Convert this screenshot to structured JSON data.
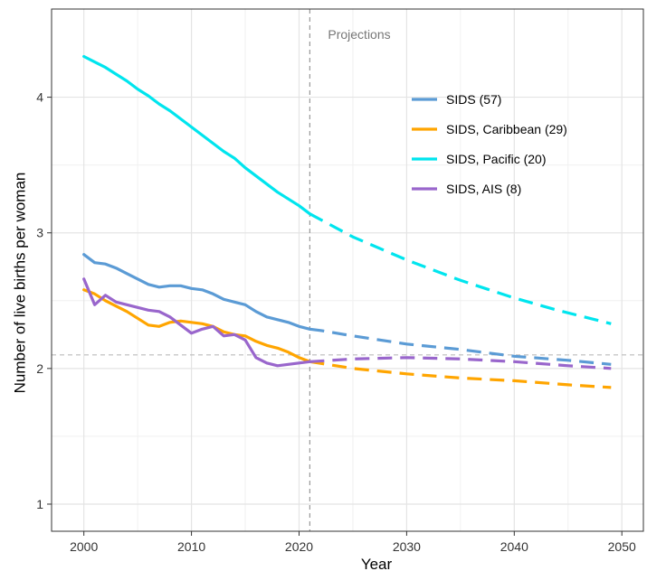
{
  "chart_data": {
    "type": "line",
    "title": "",
    "xlabel": "Year",
    "ylabel": "Number of live births per woman",
    "xlim": [
      1997,
      2052
    ],
    "ylim": [
      0.8,
      4.65
    ],
    "x_ticks": [
      2000,
      2010,
      2020,
      2030,
      2040,
      2050
    ],
    "y_ticks": [
      1,
      2,
      3,
      4
    ],
    "x_tick_labels": [
      "2000",
      "2010",
      "2020",
      "2030",
      "2040",
      "2050"
    ],
    "y_tick_labels": [
      "1",
      "2",
      "3",
      "4"
    ],
    "grid": true,
    "legend_position": "top-right",
    "projection_start": 2021,
    "projection_label": "Projections",
    "reference_line": 2.1,
    "series": [
      {
        "name": "SIDS (57)",
        "color": "#5b9bd5",
        "x": [
          2000,
          2001,
          2002,
          2003,
          2004,
          2005,
          2006,
          2007,
          2008,
          2009,
          2010,
          2011,
          2012,
          2013,
          2014,
          2015,
          2016,
          2017,
          2018,
          2019,
          2020,
          2021,
          2022,
          2025,
          2030,
          2035,
          2040,
          2045,
          2049
        ],
        "y": [
          2.84,
          2.78,
          2.77,
          2.74,
          2.7,
          2.66,
          2.62,
          2.6,
          2.61,
          2.61,
          2.59,
          2.58,
          2.55,
          2.51,
          2.49,
          2.47,
          2.42,
          2.38,
          2.36,
          2.34,
          2.31,
          2.29,
          2.28,
          2.24,
          2.18,
          2.14,
          2.09,
          2.06,
          2.03
        ]
      },
      {
        "name": "SIDS, Caribbean (29)",
        "color": "#ffa500",
        "x": [
          2000,
          2001,
          2002,
          2003,
          2004,
          2005,
          2006,
          2007,
          2008,
          2009,
          2010,
          2011,
          2012,
          2013,
          2014,
          2015,
          2016,
          2017,
          2018,
          2019,
          2020,
          2021,
          2025,
          2030,
          2035,
          2040,
          2045,
          2049
        ],
        "y": [
          2.58,
          2.55,
          2.5,
          2.46,
          2.42,
          2.37,
          2.32,
          2.31,
          2.34,
          2.35,
          2.34,
          2.33,
          2.31,
          2.27,
          2.25,
          2.24,
          2.2,
          2.17,
          2.15,
          2.12,
          2.08,
          2.05,
          2.0,
          1.96,
          1.93,
          1.91,
          1.88,
          1.86
        ]
      },
      {
        "name": "SIDS, Pacific (20)",
        "color": "#00e5ee",
        "x": [
          2000,
          2001,
          2002,
          2003,
          2004,
          2005,
          2006,
          2007,
          2008,
          2009,
          2010,
          2011,
          2012,
          2013,
          2014,
          2015,
          2016,
          2017,
          2018,
          2019,
          2020,
          2021,
          2025,
          2030,
          2035,
          2040,
          2044,
          2049
        ],
        "y": [
          4.3,
          4.26,
          4.22,
          4.17,
          4.12,
          4.06,
          4.01,
          3.95,
          3.9,
          3.84,
          3.78,
          3.72,
          3.66,
          3.6,
          3.55,
          3.48,
          3.42,
          3.36,
          3.3,
          3.25,
          3.2,
          3.14,
          2.97,
          2.8,
          2.65,
          2.52,
          2.43,
          2.33
        ]
      },
      {
        "name": "SIDS, AIS (8)",
        "color": "#9966cc",
        "x": [
          2000,
          2001,
          2002,
          2003,
          2004,
          2005,
          2006,
          2007,
          2008,
          2009,
          2010,
          2011,
          2012,
          2013,
          2014,
          2015,
          2016,
          2017,
          2018,
          2019,
          2020,
          2021,
          2025,
          2030,
          2035,
          2040,
          2045,
          2049
        ],
        "y": [
          2.66,
          2.47,
          2.54,
          2.49,
          2.47,
          2.45,
          2.43,
          2.42,
          2.38,
          2.32,
          2.26,
          2.29,
          2.31,
          2.24,
          2.25,
          2.21,
          2.08,
          2.04,
          2.02,
          2.03,
          2.04,
          2.05,
          2.07,
          2.08,
          2.07,
          2.05,
          2.02,
          2.0
        ]
      }
    ]
  }
}
